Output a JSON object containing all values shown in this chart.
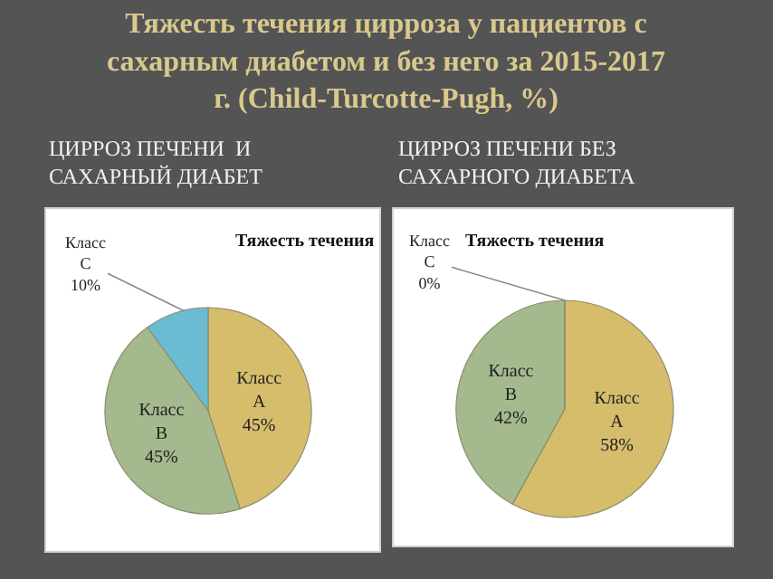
{
  "chart_data": [
    {
      "type": "pie",
      "title": "Тяжесть течения",
      "subtitle": "ЦИРРОЗ ПЕЧЕНИ  И\nСАХАРНЫЙ ДИАБЕТ",
      "annotations": [
        "Тяжесть течения цирроза у пациентов с\nсахарным диабетом и без него за 2015-2017\nг. (Child-Turcotte-Pugh, %)"
      ],
      "categories": [
        "Класс A",
        "Класс B",
        "Класс C"
      ],
      "values": [
        45,
        45,
        10
      ],
      "value_labels": [
        "45%",
        "45%",
        "10%"
      ],
      "colors": [
        "#d6bd6c",
        "#a4b98d",
        "#6bbbd2"
      ]
    },
    {
      "type": "pie",
      "title": "Тяжесть течения",
      "subtitle": "ЦИРРОЗ ПЕЧЕНИ БЕЗ\nСАХАРНОГО ДИАБЕТА",
      "categories": [
        "Класс A",
        "Класс B",
        "Класс C"
      ],
      "values": [
        58,
        42,
        0
      ],
      "value_labels": [
        "58%",
        "42%",
        "0%"
      ],
      "colors": [
        "#d6bd6c",
        "#a4b98d",
        "#6bbbd2"
      ]
    }
  ]
}
